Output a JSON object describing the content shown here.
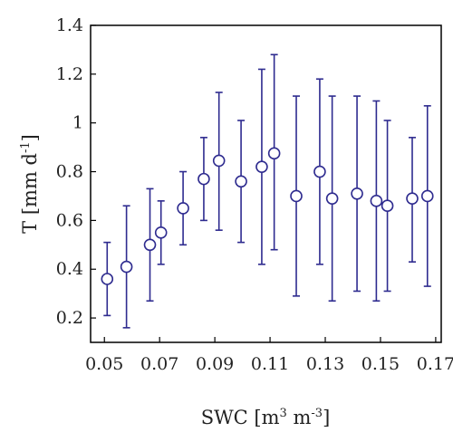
{
  "chart_data": {
    "type": "scatter",
    "xlabel": {
      "base": "SWC [m",
      "sup1": "3",
      "mid": " m",
      "sup2": "-3",
      "end": "]"
    },
    "ylabel": {
      "base": "T [mm d",
      "sup": "-1",
      "end": "]"
    },
    "xlim": [
      0.045,
      0.172
    ],
    "ylim": [
      0.1,
      1.4
    ],
    "xticks": [
      0.05,
      0.07,
      0.09,
      0.11,
      0.13,
      0.15,
      0.17
    ],
    "xtick_labels": [
      "0.05",
      "0.07",
      "0.09",
      "0.11",
      "0.13",
      "0.15",
      "0.17"
    ],
    "yticks": [
      0.2,
      0.4,
      0.6,
      0.8,
      1.0,
      1.2,
      1.4
    ],
    "ytick_labels": [
      "0.2",
      "0.4",
      "0.6",
      "0.8",
      "1",
      "1.2",
      "1.4"
    ],
    "marker_color": "#2e2b8f",
    "points": [
      {
        "x": 0.051,
        "y": 0.36,
        "lo": 0.21,
        "hi": 0.51
      },
      {
        "x": 0.058,
        "y": 0.41,
        "lo": 0.16,
        "hi": 0.66
      },
      {
        "x": 0.0665,
        "y": 0.5,
        "lo": 0.27,
        "hi": 0.73
      },
      {
        "x": 0.0705,
        "y": 0.55,
        "lo": 0.42,
        "hi": 0.68
      },
      {
        "x": 0.0785,
        "y": 0.65,
        "lo": 0.5,
        "hi": 0.8
      },
      {
        "x": 0.086,
        "y": 0.77,
        "lo": 0.6,
        "hi": 0.94
      },
      {
        "x": 0.0915,
        "y": 0.845,
        "lo": 0.56,
        "hi": 1.125
      },
      {
        "x": 0.0995,
        "y": 0.76,
        "lo": 0.51,
        "hi": 1.01
      },
      {
        "x": 0.107,
        "y": 0.82,
        "lo": 0.42,
        "hi": 1.22
      },
      {
        "x": 0.1115,
        "y": 0.875,
        "lo": 0.48,
        "hi": 1.28
      },
      {
        "x": 0.1195,
        "y": 0.7,
        "lo": 0.29,
        "hi": 1.11
      },
      {
        "x": 0.128,
        "y": 0.8,
        "lo": 0.42,
        "hi": 1.18
      },
      {
        "x": 0.1325,
        "y": 0.69,
        "lo": 0.27,
        "hi": 1.11
      },
      {
        "x": 0.1415,
        "y": 0.71,
        "lo": 0.31,
        "hi": 1.11
      },
      {
        "x": 0.1485,
        "y": 0.68,
        "lo": 0.27,
        "hi": 1.09
      },
      {
        "x": 0.1525,
        "y": 0.66,
        "lo": 0.31,
        "hi": 1.01
      },
      {
        "x": 0.1615,
        "y": 0.69,
        "lo": 0.43,
        "hi": 0.94
      },
      {
        "x": 0.167,
        "y": 0.7,
        "lo": 0.33,
        "hi": 1.07
      }
    ]
  }
}
